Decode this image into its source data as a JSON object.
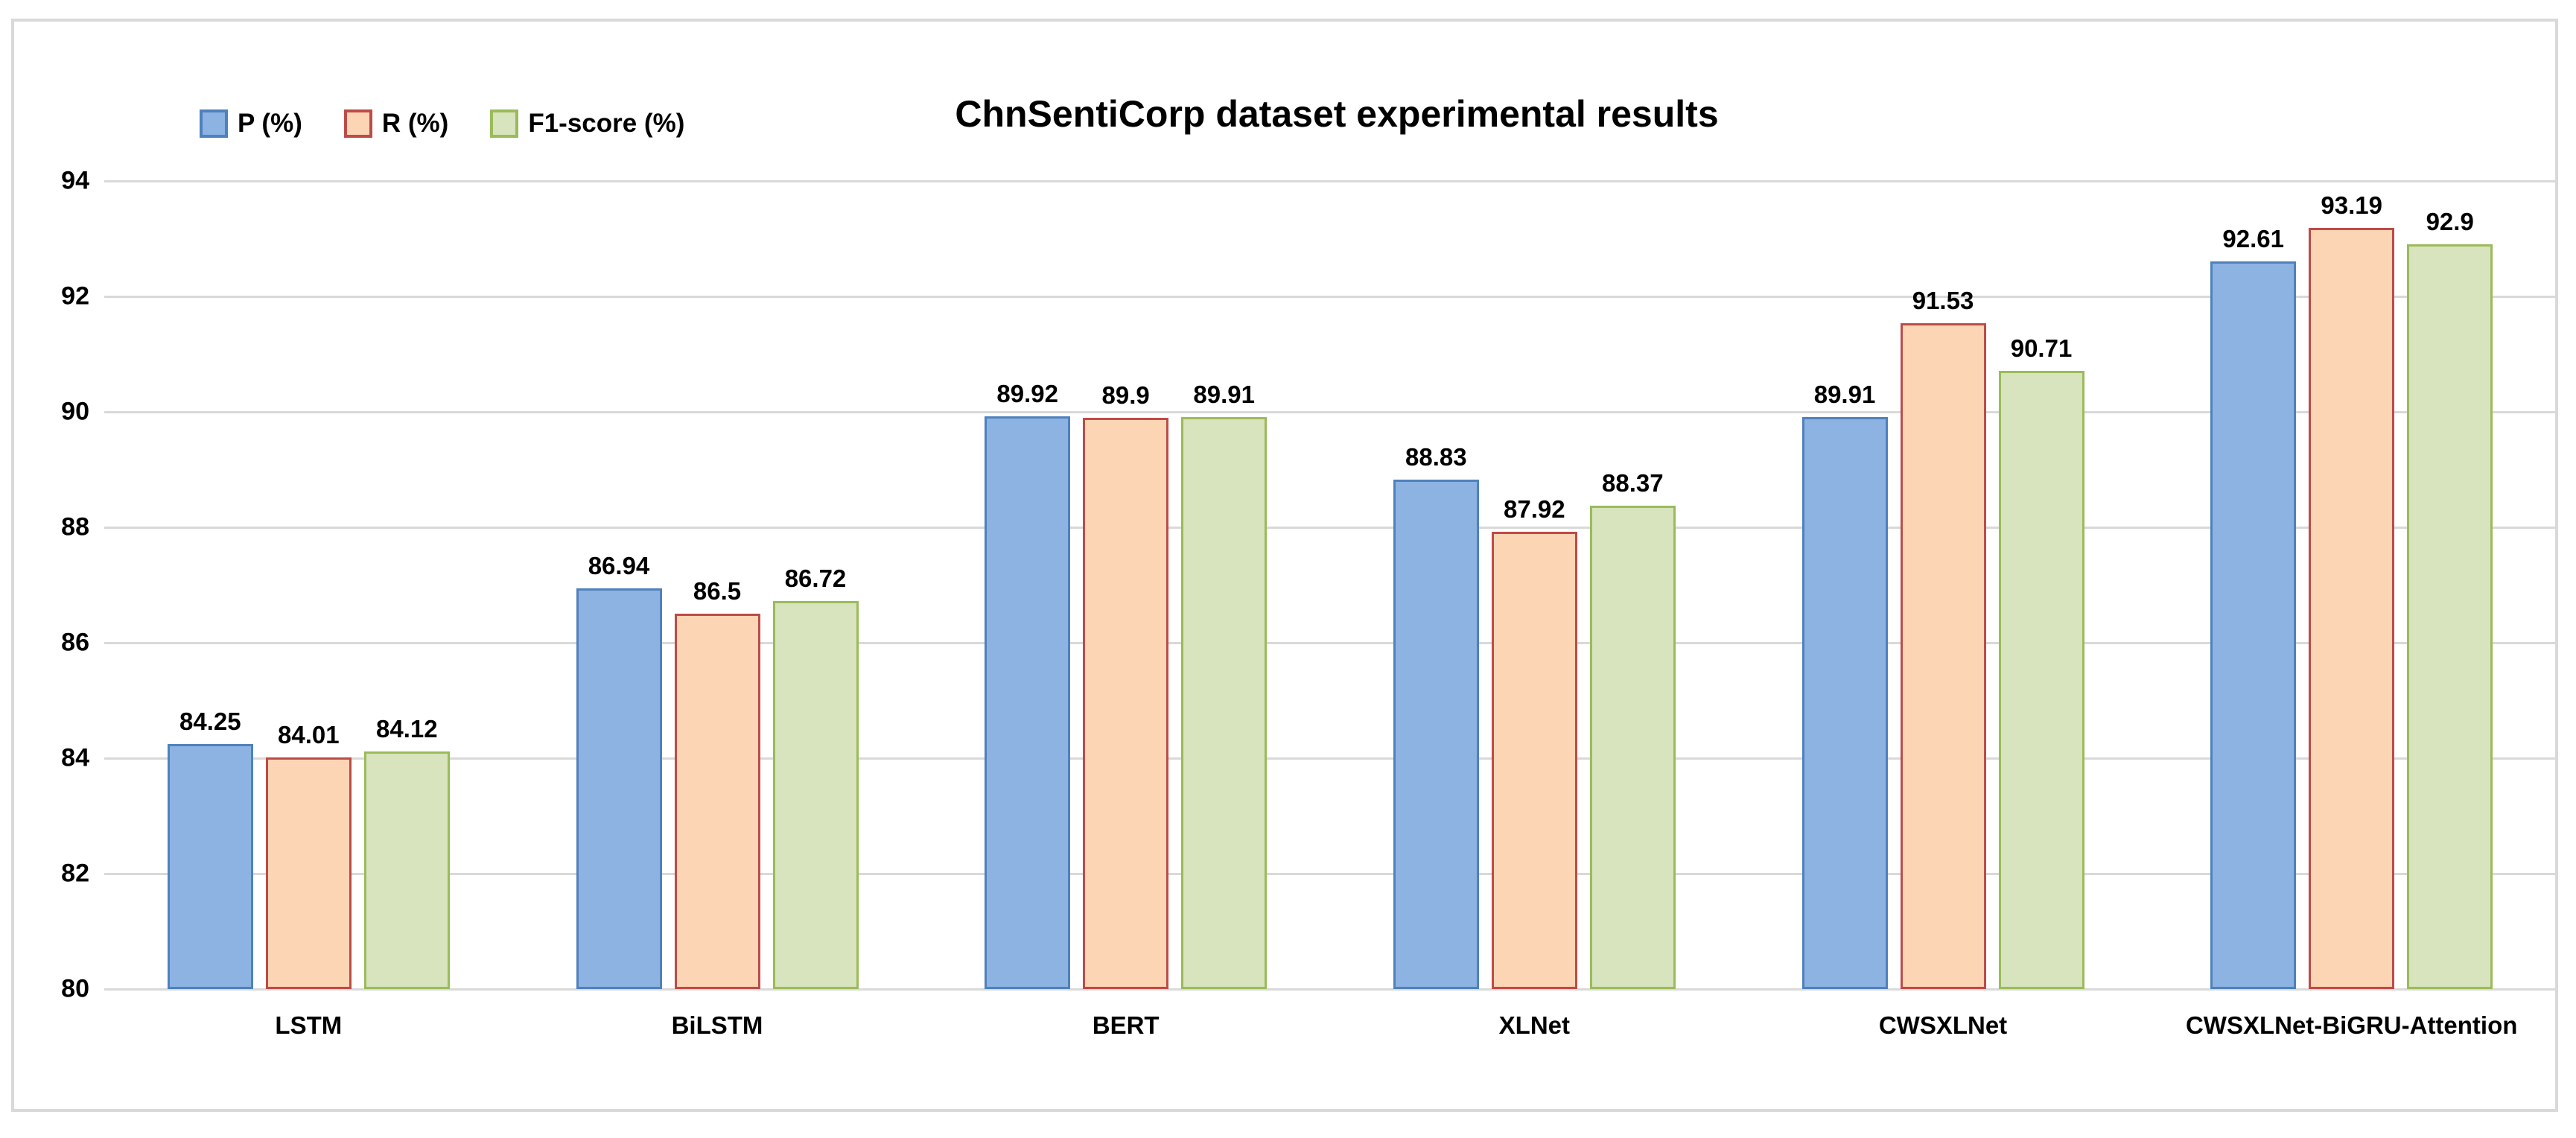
{
  "chart_data": {
    "type": "bar",
    "title": "ChnSentiCorp dataset experimental results",
    "categories": [
      "LSTM",
      "BiLSTM",
      "BERT",
      "XLNet",
      "CWSXLNet",
      "CWSXLNet-BiGRU-Attention"
    ],
    "series": [
      {
        "name": "P (%)",
        "fill": "#8DB3E2",
        "border": "#4F81BD",
        "values": [
          84.25,
          86.94,
          89.92,
          88.83,
          89.91,
          92.61
        ]
      },
      {
        "name": "R (%)",
        "fill": "#FCD5B4",
        "border": "#BE4B48",
        "values": [
          84.01,
          86.5,
          89.9,
          87.92,
          91.53,
          93.19
        ]
      },
      {
        "name": "F1-score (%)",
        "fill": "#D7E4BD",
        "border": "#9BBB59",
        "values": [
          84.12,
          86.72,
          89.91,
          88.37,
          90.71,
          92.9
        ]
      }
    ],
    "ylim": [
      80,
      94
    ],
    "yticks": [
      80,
      82,
      84,
      86,
      88,
      90,
      92,
      94
    ],
    "grid": true,
    "legend_position": "top-left",
    "colors": {
      "gridline": "#d9d9d9",
      "frame_border": "#d9d9d9",
      "text": "#000000"
    }
  }
}
